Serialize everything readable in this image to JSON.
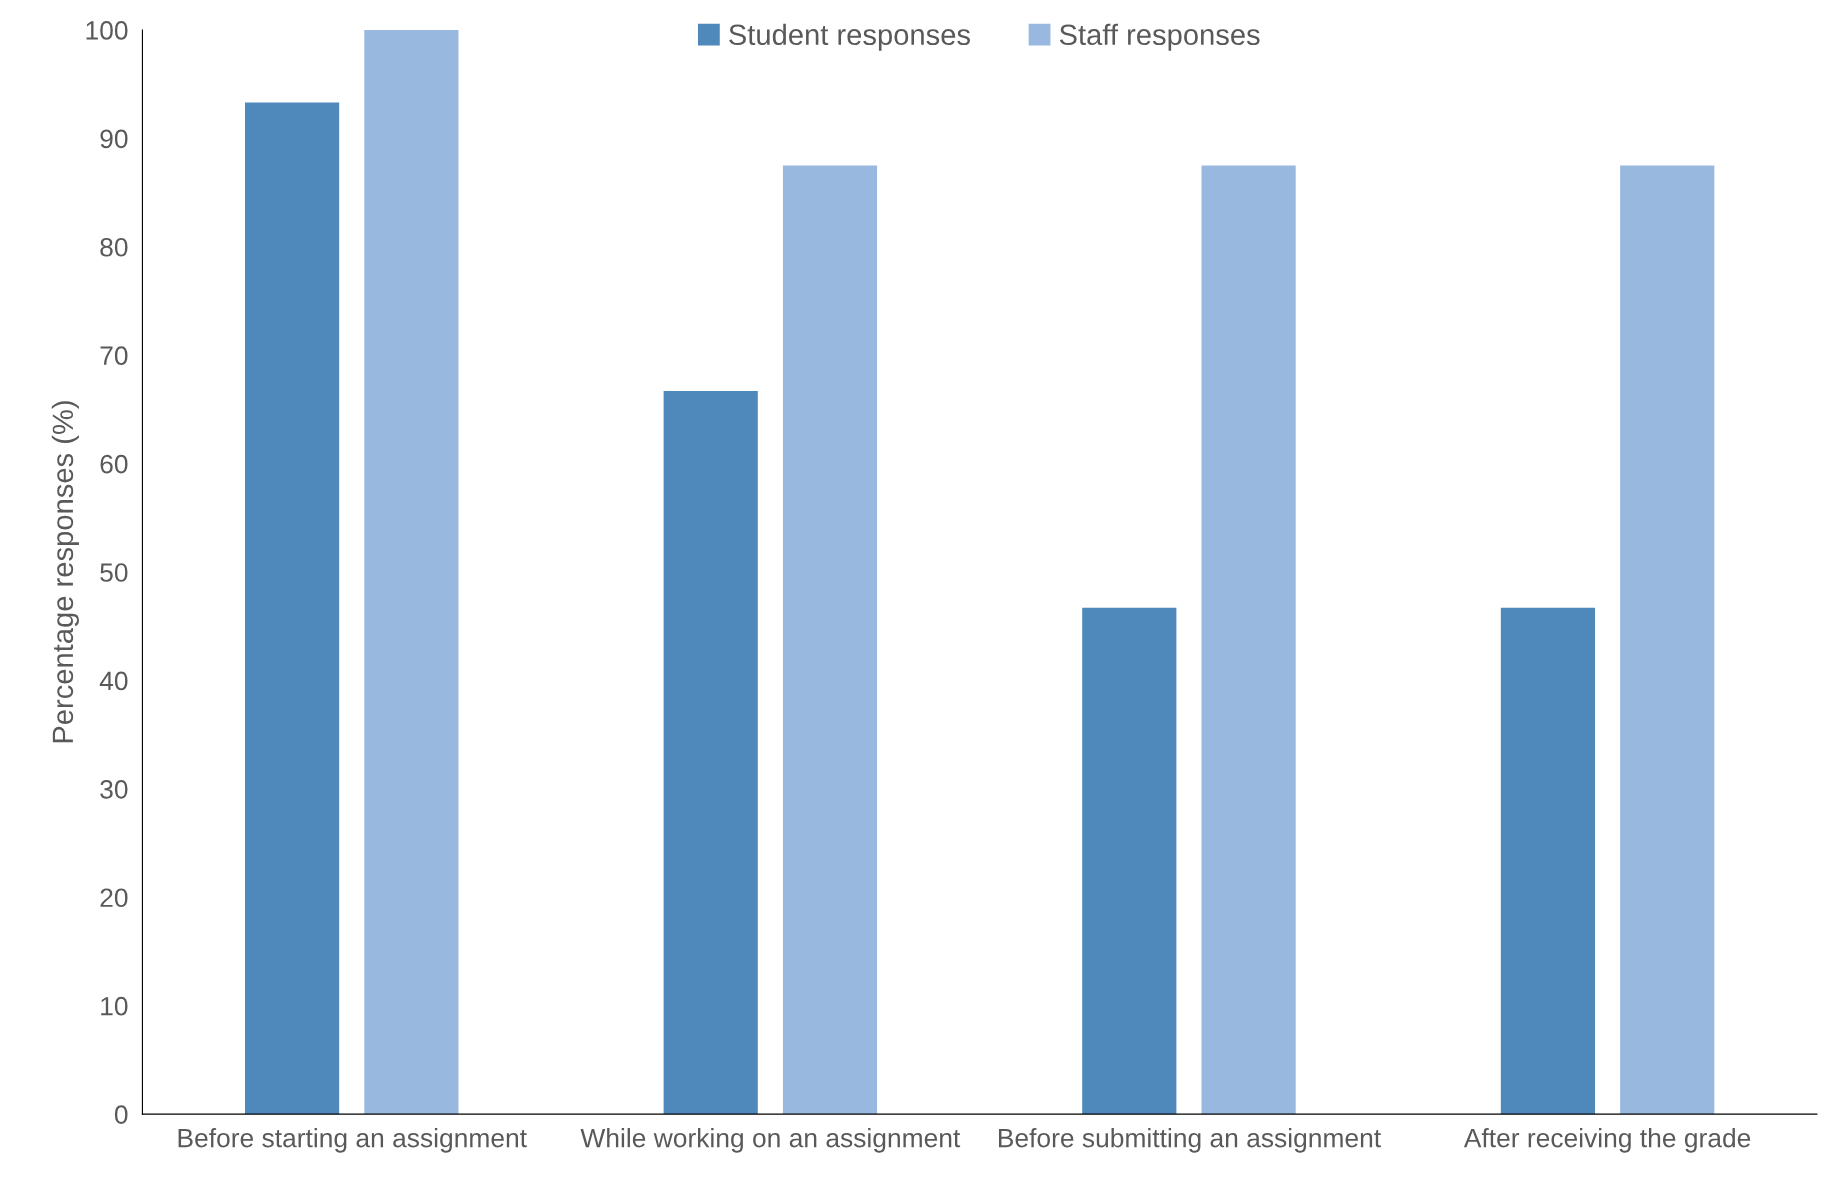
{
  "chart_data": {
    "type": "bar",
    "ylabel": "Percentage responses (%)",
    "categories": [
      "Before starting an assignment",
      "While working on an assignment",
      "Before submitting an assignment",
      "After receiving the grade"
    ],
    "series": [
      {
        "name": "Student responses",
        "color": "#4f89bc",
        "values": [
          93.3,
          66.7,
          46.7,
          46.7
        ]
      },
      {
        "name": "Staff responses",
        "color": "#99b8df",
        "values": [
          100,
          87.5,
          87.5,
          87.5
        ]
      }
    ],
    "ylim": [
      0,
      100
    ],
    "yticks": [
      0,
      10,
      20,
      30,
      40,
      50,
      60,
      70,
      80,
      90,
      100
    ],
    "grid": false,
    "legend": "top"
  }
}
